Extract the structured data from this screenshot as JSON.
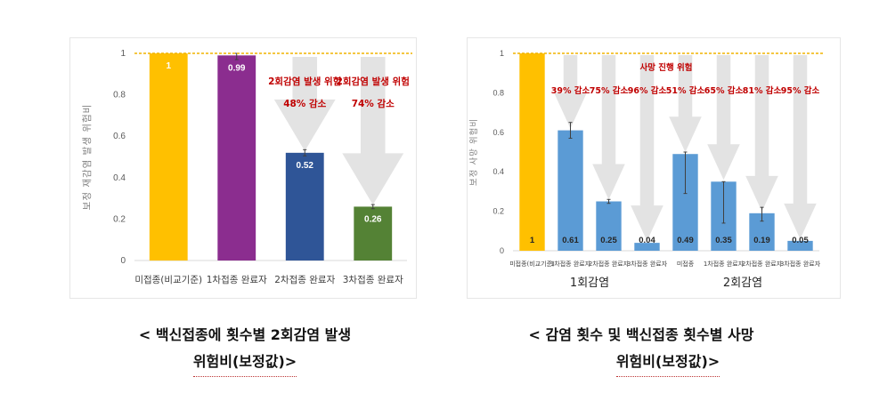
{
  "chart_data": [
    {
      "type": "bar",
      "ylabel": "보정 재감염 발생 위험비",
      "ylim": [
        0,
        1
      ],
      "yticks": [
        "0",
        "0.2",
        "0.4",
        "0.6",
        "0.8",
        "1"
      ],
      "reference_line": 1,
      "reference_line_color": "#f0b400",
      "grid": false,
      "categories": [
        "미접종(비교기준)",
        "1차접종 완료자",
        "2차접종 완료자",
        "3차접종 완료자"
      ],
      "values": [
        1,
        0.99,
        0.52,
        0.26
      ],
      "value_labels": [
        "1",
        "0.99",
        "0.52",
        "0.26"
      ],
      "bar_colors": [
        "#ffc000",
        "#8b2d8f",
        "#2f5597",
        "#548235"
      ],
      "error_bars": [
        null,
        [
          0.97,
          1.0
        ],
        [
          0.505,
          0.535
        ],
        [
          0.25,
          0.27
        ]
      ],
      "annotations": [
        {
          "category_index": 2,
          "lines": [
            "2회감염 발생 위험",
            "48% 감소"
          ]
        },
        {
          "category_index": 3,
          "lines": [
            "2회감염 발생 위험",
            "74% 감소"
          ]
        }
      ],
      "annotation_color": "#c00000",
      "arrow_color": "#e3e3e3"
    },
    {
      "type": "bar",
      "ylabel": "보정 사망 위험비",
      "ylim": [
        0,
        1
      ],
      "yticks": [
        "0",
        "0.2",
        "0.4",
        "0.6",
        "0.8",
        "1"
      ],
      "reference_line": 1,
      "reference_line_color": "#f0b400",
      "grid": false,
      "top_note": "사망 진행 위험",
      "categories": [
        "미접종(비교기준)",
        "1차접종 완료자",
        "2차접종 완료자",
        "3차접종 완료자",
        "미접종",
        "1차접종 완료자",
        "2차접종 완료자",
        "3차접종 완료자"
      ],
      "groups": [
        {
          "label": "1회감염",
          "from": 0,
          "to": 3
        },
        {
          "label": "2회감염",
          "from": 4,
          "to": 7
        }
      ],
      "values": [
        1,
        0.61,
        0.25,
        0.04,
        0.49,
        0.35,
        0.19,
        0.05
      ],
      "value_labels": [
        "1",
        "0.61",
        "0.25",
        "0.04",
        "0.49",
        "0.35",
        "0.19",
        "0.05"
      ],
      "bar_colors": [
        "#ffc000",
        "#5b9bd5",
        "#5b9bd5",
        "#5b9bd5",
        "#5b9bd5",
        "#5b9bd5",
        "#5b9bd5",
        "#5b9bd5"
      ],
      "error_bars": [
        null,
        [
          0.57,
          0.65
        ],
        [
          0.24,
          0.26
        ],
        null,
        [
          0.29,
          0.5
        ],
        [
          0.14,
          0.35
        ],
        [
          0.15,
          0.22
        ],
        null
      ],
      "reduction_labels": [
        null,
        "39% 감소",
        "75% 감소",
        "96% 감소",
        "51% 감소",
        "65% 감소",
        "81% 감소",
        "95% 감소"
      ],
      "annotation_color": "#c00000",
      "arrow_color": "#e3e3e3"
    }
  ],
  "captions": {
    "left": {
      "line1": "< 백신접종에 횟수별 2회감염 발생",
      "line2": "위험비(보정값)>"
    },
    "right": {
      "line1": "< 감염 횟수 및 백신접종 횟수별 사망",
      "line2": "위험비(보정값)>"
    }
  }
}
